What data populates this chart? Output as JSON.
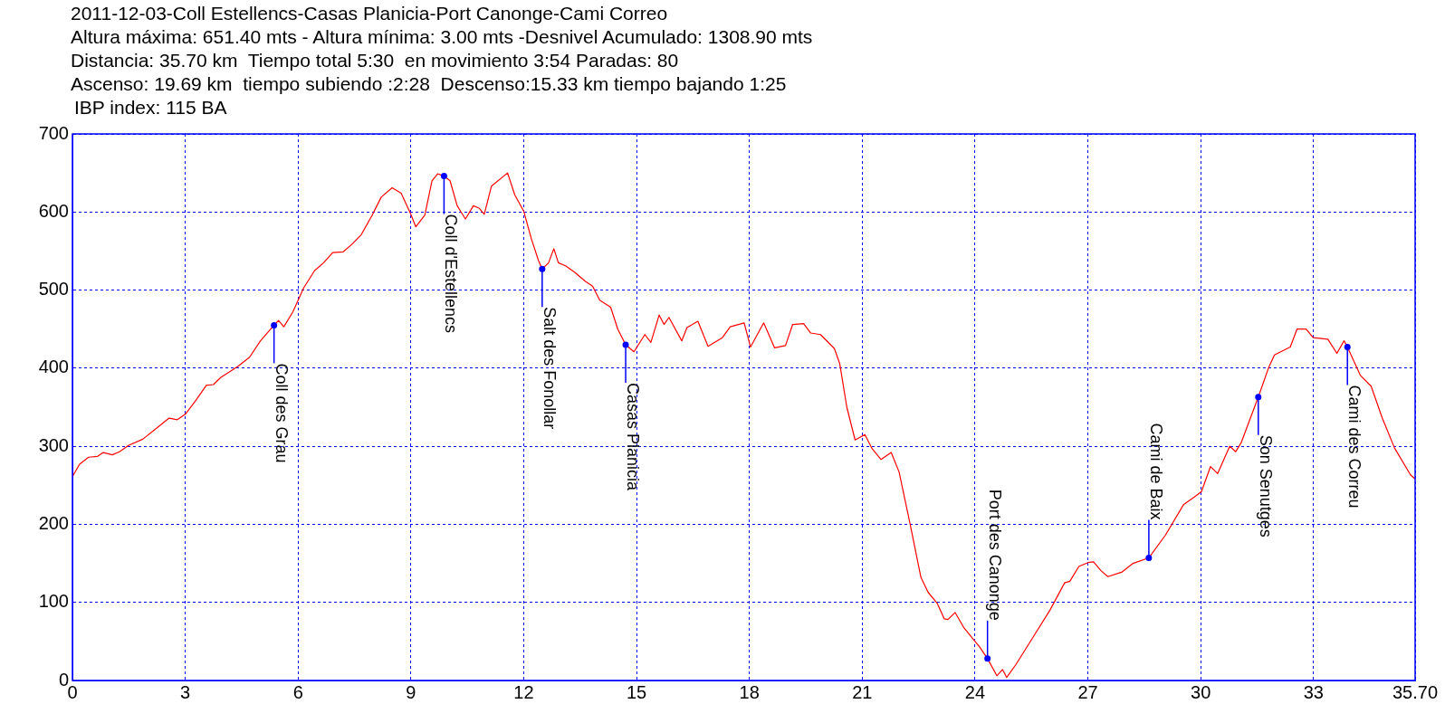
{
  "chart_data": {
    "type": "line",
    "title": "2011-12-03-Coll Estellencs-Casas Planicia-Port Canonge-Cami Correo",
    "annotations": [
      "Altura máxima: 651.40 mts - Altura mínima: 3.00 mts -Desnivel Acumulado: 1308.90 mts",
      "Distancia: 35.70 km  Tiempo total 5:30  en movimiento 3:54 Paradas: 80",
      "Ascenso: 19.69 km  tiempo subiendo :2:28  Descenso:15.33 km tiempo bajando 1:25",
      "IBP index: 115 BA",
      {
        "text": "Coll des Grau",
        "x": 5.36,
        "y": 455
      },
      {
        "text": "Coll d'Estellencs",
        "x": 9.88,
        "y": 646
      },
      {
        "text": "Salt des Fonollar",
        "x": 12.49,
        "y": 527
      },
      {
        "text": "Casas Planicia",
        "x": 14.71,
        "y": 430
      },
      {
        "text": "Port des Canonge",
        "x": 24.33,
        "y": 28
      },
      {
        "text": "Cami de Baix",
        "x": 28.62,
        "y": 157
      },
      {
        "text": "Son Senutges",
        "x": 31.53,
        "y": 363
      },
      {
        "text": "Cami des Correu",
        "x": 33.9,
        "y": 427
      }
    ],
    "x": [
      0,
      0.19,
      0.43,
      0.67,
      0.82,
      1.06,
      1.25,
      1.49,
      1.87,
      2.31,
      2.57,
      2.79,
      3.0,
      3.27,
      3.56,
      3.75,
      3.94,
      4.23,
      4.42,
      4.71,
      5.0,
      5.36,
      5.48,
      5.62,
      5.86,
      6.15,
      6.44,
      6.68,
      6.92,
      7.2,
      7.44,
      7.68,
      7.97,
      8.21,
      8.5,
      8.74,
      8.99,
      9.13,
      9.37,
      9.56,
      9.71,
      9.88,
      10.04,
      10.23,
      10.45,
      10.66,
      10.81,
      10.95,
      11.14,
      11.57,
      11.76,
      12.0,
      12.2,
      12.39,
      12.49,
      12.66,
      12.8,
      12.92,
      13.11,
      13.35,
      13.64,
      13.83,
      14.02,
      14.31,
      14.5,
      14.71,
      14.93,
      15.22,
      15.38,
      15.6,
      15.73,
      15.86,
      16.2,
      16.34,
      16.63,
      16.9,
      17.28,
      17.49,
      17.86,
      18.03,
      18.38,
      18.67,
      18.96,
      19.15,
      19.44,
      19.63,
      19.89,
      20.26,
      20.4,
      20.59,
      20.81,
      21.07,
      21.26,
      21.5,
      21.77,
      21.98,
      22.27,
      22.56,
      22.75,
      22.99,
      23.18,
      23.28,
      23.47,
      23.71,
      24.0,
      24.12,
      24.33,
      24.58,
      24.73,
      24.84,
      25.08,
      25.51,
      25.99,
      26.38,
      26.52,
      26.76,
      27.0,
      27.15,
      27.34,
      27.53,
      27.91,
      28.2,
      28.62,
      29.06,
      29.54,
      29.83,
      30.02,
      30.26,
      30.45,
      30.77,
      30.93,
      31.08,
      31.53,
      31.8,
      31.96,
      32.38,
      32.56,
      32.8,
      32.99,
      33.38,
      33.62,
      33.81,
      33.9,
      34.24,
      34.53,
      34.82,
      35.15,
      35.58,
      35.7
    ],
    "values": [
      261,
      277,
      286,
      287,
      292,
      289,
      293,
      301,
      309,
      326,
      336,
      334,
      341,
      358,
      378,
      379,
      388,
      397,
      403,
      414,
      435,
      455,
      461,
      453,
      472,
      503,
      525,
      535,
      548,
      549,
      559,
      571,
      596,
      619,
      631,
      624,
      598,
      581,
      596,
      640,
      649,
      646,
      640,
      608,
      591,
      608,
      605,
      597,
      633,
      650,
      622,
      601,
      566,
      538,
      527,
      535,
      553,
      535,
      531,
      523,
      511,
      505,
      487,
      478,
      450,
      430,
      421,
      443,
      433,
      468,
      456,
      465,
      435,
      452,
      460,
      428,
      439,
      453,
      458,
      427,
      458,
      426,
      429,
      456,
      457,
      445,
      443,
      425,
      406,
      350,
      308,
      315,
      297,
      283,
      292,
      267,
      201,
      132,
      113,
      99,
      79,
      78,
      87,
      67,
      50,
      43,
      28,
      6,
      14,
      4,
      20,
      53,
      90,
      125,
      127,
      146,
      151,
      152,
      141,
      133,
      139,
      150,
      157,
      186,
      225,
      235,
      242,
      274,
      265,
      300,
      293,
      305,
      363,
      400,
      417,
      427,
      450,
      450,
      439,
      437,
      419,
      435,
      427,
      391,
      377,
      337,
      298,
      263,
      258
    ],
    "color": "#ff0000",
    "xlim": [
      0,
      35.7
    ],
    "xticks": [
      0,
      3,
      6,
      9,
      12,
      15,
      18,
      21,
      24,
      27,
      30,
      33,
      {
        "value": 35.7,
        "label": "35.70"
      }
    ],
    "ylim": [
      0,
      700
    ],
    "yticks": [
      0,
      100,
      200,
      300,
      400,
      500,
      600,
      700
    ],
    "grid": true,
    "legend": false,
    "marker": "none",
    "line_style": "solid"
  }
}
